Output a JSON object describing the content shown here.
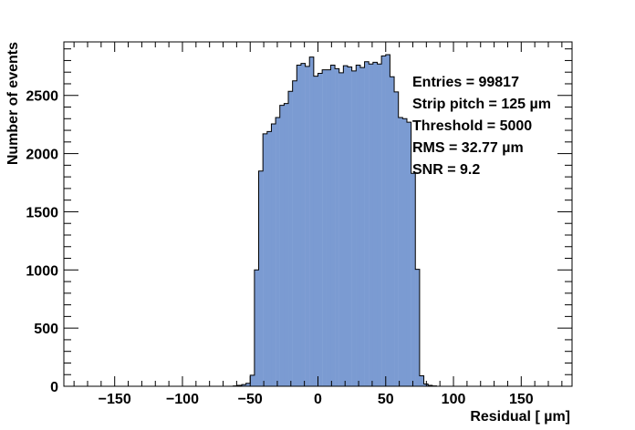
{
  "chart_data": {
    "type": "bar",
    "title": "",
    "xlabel": "Residual [ µm]",
    "ylabel": "Number of events",
    "xlim": [
      -187.5,
      187.5
    ],
    "ylim": [
      0,
      2960
    ],
    "bin_width": 3.125,
    "bin_start": -187.5,
    "x_ticks": [
      -150,
      -100,
      -50,
      0,
      50,
      100,
      150
    ],
    "x_tick_labels": [
      "−150",
      "−100",
      "−50",
      "0",
      "50",
      "100",
      "150"
    ],
    "y_ticks": [
      0,
      500,
      1000,
      1500,
      2000,
      2500
    ],
    "y_tick_labels": [
      "0",
      "500",
      "1000",
      "1500",
      "2000",
      "2500"
    ],
    "grid": false,
    "legend": "none",
    "fill_color": "#7b9bd2",
    "edge_color": "#000000",
    "values": [
      0,
      0,
      0,
      0,
      0,
      0,
      0,
      0,
      0,
      0,
      0,
      0,
      0,
      0,
      0,
      0,
      0,
      0,
      0,
      0,
      0,
      0,
      0,
      0,
      0,
      0,
      0,
      0,
      0,
      0,
      0,
      0,
      0,
      0,
      0,
      0,
      0,
      0,
      0,
      0,
      3,
      8,
      15,
      25,
      95,
      1000,
      1850,
      2170,
      2190,
      2255,
      2310,
      2415,
      2430,
      2535,
      2625,
      2760,
      2775,
      2750,
      2830,
      2665,
      2690,
      2720,
      2720,
      2760,
      2730,
      2695,
      2755,
      2745,
      2710,
      2760,
      2740,
      2790,
      2770,
      2785,
      2770,
      2840,
      2850,
      2660,
      2530,
      2310,
      2300,
      2270,
      1830,
      1005,
      90,
      20,
      8,
      3,
      0,
      0,
      0,
      0,
      0,
      0,
      0,
      0,
      0,
      0,
      0,
      0,
      0,
      0,
      0,
      0,
      0,
      0,
      0,
      0,
      0,
      0,
      0,
      0,
      0,
      0,
      0,
      0,
      0,
      0,
      0,
      0
    ],
    "stats": [
      "Entries = 99817",
      "Strip pitch = 125  µm",
      "Threshold =  5000",
      "RMS = 32.77  µm",
      "SNR =  9.2"
    ]
  }
}
